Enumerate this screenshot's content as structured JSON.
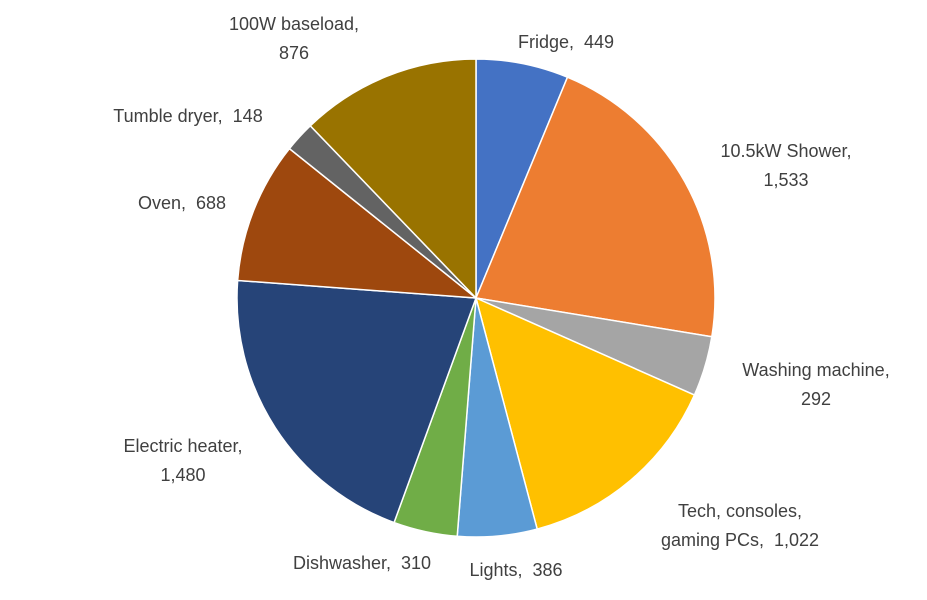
{
  "chart_data": {
    "type": "pie",
    "title": "",
    "start_angle_deg": 0,
    "direction": "clockwise",
    "slices": [
      {
        "name": "Fridge",
        "value": 449,
        "value_label": "449",
        "color": "#4472C4"
      },
      {
        "name": "10.5kW Shower",
        "value": 1533,
        "value_label": "1,533",
        "color": "#ED7D31"
      },
      {
        "name": "Washing machine",
        "value": 292,
        "value_label": "292",
        "color": "#A5A5A5"
      },
      {
        "name": "Tech, consoles, gaming PCs",
        "value": 1022,
        "value_label": "1,022",
        "color": "#FFC000"
      },
      {
        "name": "Lights",
        "value": 386,
        "value_label": "386",
        "color": "#5B9BD5"
      },
      {
        "name": "Dishwasher",
        "value": 310,
        "value_label": "310",
        "color": "#70AD47"
      },
      {
        "name": "Electric heater",
        "value": 1480,
        "value_label": "1,480",
        "color": "#264478"
      },
      {
        "name": "Oven",
        "value": 688,
        "value_label": "688",
        "color": "#9E480E"
      },
      {
        "name": "Tumble dryer",
        "value": 148,
        "value_label": "148",
        "color": "#636363"
      },
      {
        "name": "100W baseload",
        "value": 876,
        "value_label": "876",
        "color": "#997300"
      }
    ],
    "labels": [
      {
        "lines": [
          "Fridge,  449"
        ]
      },
      {
        "lines": [
          "10.5kW Shower,",
          "1,533"
        ]
      },
      {
        "lines": [
          "Washing machine,",
          "292"
        ]
      },
      {
        "lines": [
          "Tech, consoles,",
          "gaming PCs,  1,022"
        ]
      },
      {
        "lines": [
          "Lights,  386"
        ]
      },
      {
        "lines": [
          "Dishwasher,  310"
        ]
      },
      {
        "lines": [
          "Electric heater,",
          "1,480"
        ]
      },
      {
        "lines": [
          "Oven,  688"
        ]
      },
      {
        "lines": [
          "Tumble dryer,  148"
        ]
      },
      {
        "lines": [
          "100W baseload,",
          "876"
        ]
      }
    ]
  }
}
